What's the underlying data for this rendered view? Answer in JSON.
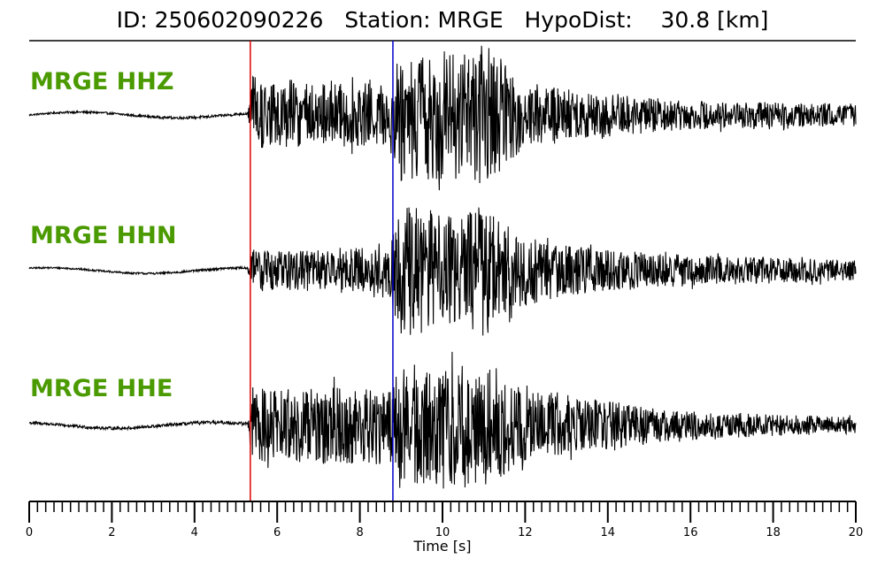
{
  "title": "ID: 250602090226   Station: MRGE   HypoDist:    30.8 [km]",
  "colors": {
    "trace": "#000000",
    "label": "#4a9a00",
    "p_pick": "#e00000",
    "s_pick": "#0000cc"
  },
  "chart_data": {
    "type": "line",
    "xlabel": "Time [s]",
    "xlim": [
      0,
      20
    ],
    "major_ticks": [
      0,
      2,
      4,
      6,
      8,
      10,
      12,
      14,
      16,
      18,
      20
    ],
    "minor_tick_step": 0.2,
    "picks": [
      {
        "phase": "P",
        "time": 5.35
      },
      {
        "phase": "S",
        "time": 8.8
      }
    ],
    "series": [
      {
        "name": "MRGE HHZ",
        "envelope": {
          "t": [
            0,
            5.3,
            5.4,
            6.0,
            7.0,
            8.7,
            9.0,
            9.5,
            10.0,
            10.5,
            11.0,
            11.5,
            12.0,
            13.0,
            14.0,
            15.0,
            16.0,
            18.0,
            20.0
          ],
          "amp": [
            0.03,
            0.05,
            0.55,
            0.45,
            0.45,
            0.45,
            1.0,
            0.9,
            0.95,
            0.85,
            1.0,
            0.75,
            0.45,
            0.38,
            0.32,
            0.25,
            0.2,
            0.18,
            0.16
          ]
        }
      },
      {
        "name": "MRGE HHN",
        "envelope": {
          "t": [
            0,
            5.3,
            5.4,
            6.0,
            7.0,
            8.7,
            9.0,
            9.5,
            10.0,
            10.5,
            11.0,
            11.5,
            12.0,
            13.0,
            14.0,
            15.0,
            16.0,
            18.0,
            20.0
          ],
          "amp": [
            0.03,
            0.04,
            0.3,
            0.3,
            0.3,
            0.35,
            0.95,
            0.9,
            0.8,
            0.8,
            0.95,
            0.65,
            0.5,
            0.35,
            0.3,
            0.25,
            0.22,
            0.18,
            0.15
          ]
        }
      },
      {
        "name": "MRGE HHE",
        "envelope": {
          "t": [
            0,
            5.3,
            5.4,
            6.0,
            7.0,
            8.7,
            9.0,
            9.5,
            10.0,
            10.5,
            11.0,
            11.5,
            12.0,
            13.0,
            14.0,
            15.0,
            16.0,
            18.0,
            20.0
          ],
          "amp": [
            0.05,
            0.06,
            0.55,
            0.5,
            0.55,
            0.55,
            0.8,
            0.9,
            0.85,
            0.9,
            0.85,
            0.7,
            0.5,
            0.4,
            0.35,
            0.25,
            0.2,
            0.15,
            0.12
          ]
        }
      }
    ]
  }
}
